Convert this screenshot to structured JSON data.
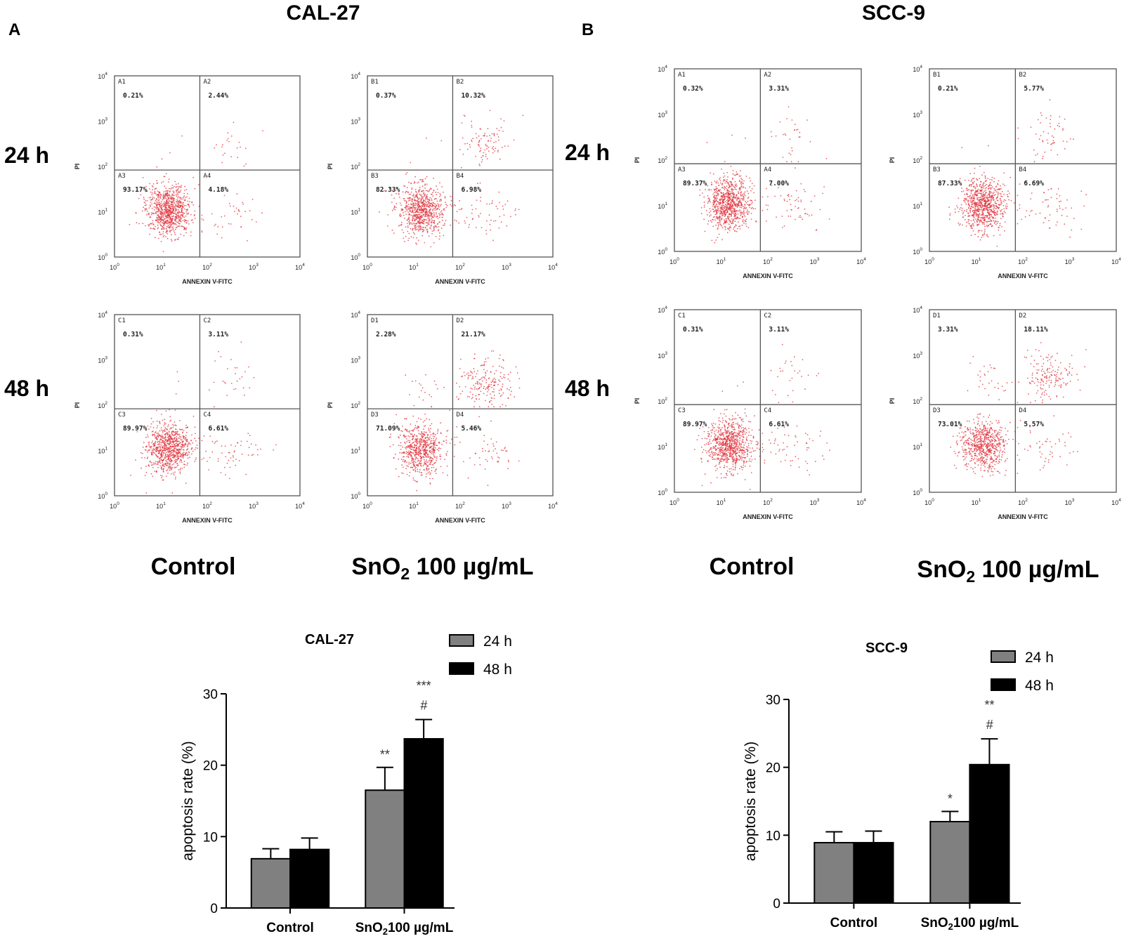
{
  "panels": {
    "A": {
      "letter": "A",
      "cell_line": "CAL-27",
      "row_labels": [
        "24 h",
        "48 h"
      ],
      "col_labels": [
        {
          "main": "Control",
          "sub": "",
          "rest": ""
        },
        {
          "main": "SnO",
          "sub": "2",
          "rest": " 100 µg/mL"
        }
      ],
      "plots": [
        {
          "row": 0,
          "col": 0,
          "q": [
            "A1",
            "A2",
            "A3",
            "A4"
          ],
          "pct": [
            "0.21%",
            "2.44%",
            "93.17%",
            "4.18%"
          ]
        },
        {
          "row": 0,
          "col": 1,
          "q": [
            "B1",
            "B2",
            "B3",
            "B4"
          ],
          "pct": [
            "0.37%",
            "10.32%",
            "82.33%",
            "6.98%"
          ]
        },
        {
          "row": 1,
          "col": 0,
          "q": [
            "C1",
            "C2",
            "C3",
            "C4"
          ],
          "pct": [
            "0.31%",
            "3.11%",
            "89.97%",
            "6.61%"
          ]
        },
        {
          "row": 1,
          "col": 1,
          "q": [
            "D1",
            "D2",
            "D3",
            "D4"
          ],
          "pct": [
            "2.28%",
            "21.17%",
            "71.09%",
            "5.46%"
          ]
        }
      ]
    },
    "B": {
      "letter": "B",
      "cell_line": "SCC-9",
      "row_labels": [
        "24 h",
        "48 h"
      ],
      "col_labels": [
        {
          "main": "Control",
          "sub": "",
          "rest": ""
        },
        {
          "main": "SnO",
          "sub": "2",
          "rest": " 100 µg/mL"
        }
      ],
      "plots": [
        {
          "row": 0,
          "col": 0,
          "q": [
            "A1",
            "A2",
            "A3",
            "A4"
          ],
          "pct": [
            "0.32%",
            "3.31%",
            "89.37%",
            "7.00%"
          ]
        },
        {
          "row": 0,
          "col": 1,
          "q": [
            "B1",
            "B2",
            "B3",
            "B4"
          ],
          "pct": [
            "0.21%",
            "5.77%",
            "87.33%",
            "6.69%"
          ]
        },
        {
          "row": 1,
          "col": 0,
          "q": [
            "C1",
            "C2",
            "C3",
            "C4"
          ],
          "pct": [
            "0.31%",
            "3.11%",
            "89.97%",
            "6.61%"
          ]
        },
        {
          "row": 1,
          "col": 1,
          "q": [
            "D1",
            "D2",
            "D3",
            "D4"
          ],
          "pct": [
            "3.31%",
            "18.11%",
            "73.01%",
            "5.57%"
          ]
        }
      ]
    }
  },
  "flow_axes": {
    "xlabel": "ANNEXIN V-FITC",
    "ylabel": "PI",
    "ticks": [
      "10",
      "10",
      "10",
      "10",
      "10"
    ],
    "tick_exponents": [
      "0",
      "1",
      "2",
      "3",
      "4"
    ]
  },
  "chart_data": [
    {
      "type": "bar",
      "title": "CAL-27",
      "categories": [
        {
          "main": "Control",
          "sub": "",
          "rest": ""
        },
        {
          "main": "SnO",
          "sub": "2",
          "rest": "100 µg/mL"
        }
      ],
      "series": [
        {
          "name": "24 h",
          "values": [
            6.9,
            16.5
          ],
          "errors": [
            1.4,
            3.2
          ],
          "annot": [
            "",
            "**"
          ]
        },
        {
          "name": "48 h",
          "values": [
            8.2,
            23.7
          ],
          "errors": [
            1.6,
            2.7
          ],
          "annot": [
            "",
            "***"
          ],
          "annot2": [
            "",
            "#"
          ]
        }
      ],
      "xlabel": "",
      "ylabel": "apoptosis rate (%)",
      "ylim": [
        0,
        30
      ],
      "yticks": [
        0,
        10,
        20,
        30
      ],
      "legend": "top-right",
      "colors": [
        "#808080",
        "#000000"
      ]
    },
    {
      "type": "bar",
      "title": "SCC-9",
      "categories": [
        {
          "main": "Control",
          "sub": "",
          "rest": ""
        },
        {
          "main": "SnO",
          "sub": "2",
          "rest": "100 µg/mL"
        }
      ],
      "series": [
        {
          "name": "24 h",
          "values": [
            8.9,
            12.0
          ],
          "errors": [
            1.6,
            1.5
          ],
          "annot": [
            "",
            "*"
          ]
        },
        {
          "name": "48 h",
          "values": [
            8.9,
            20.4
          ],
          "errors": [
            1.7,
            3.8
          ],
          "annot": [
            "",
            "**"
          ],
          "annot2": [
            "",
            "#"
          ]
        }
      ],
      "xlabel": "",
      "ylabel": "apoptosis rate (%)",
      "ylim": [
        0,
        30
      ],
      "yticks": [
        0,
        10,
        20,
        30
      ],
      "legend": "top-right",
      "colors": [
        "#808080",
        "#000000"
      ]
    }
  ]
}
